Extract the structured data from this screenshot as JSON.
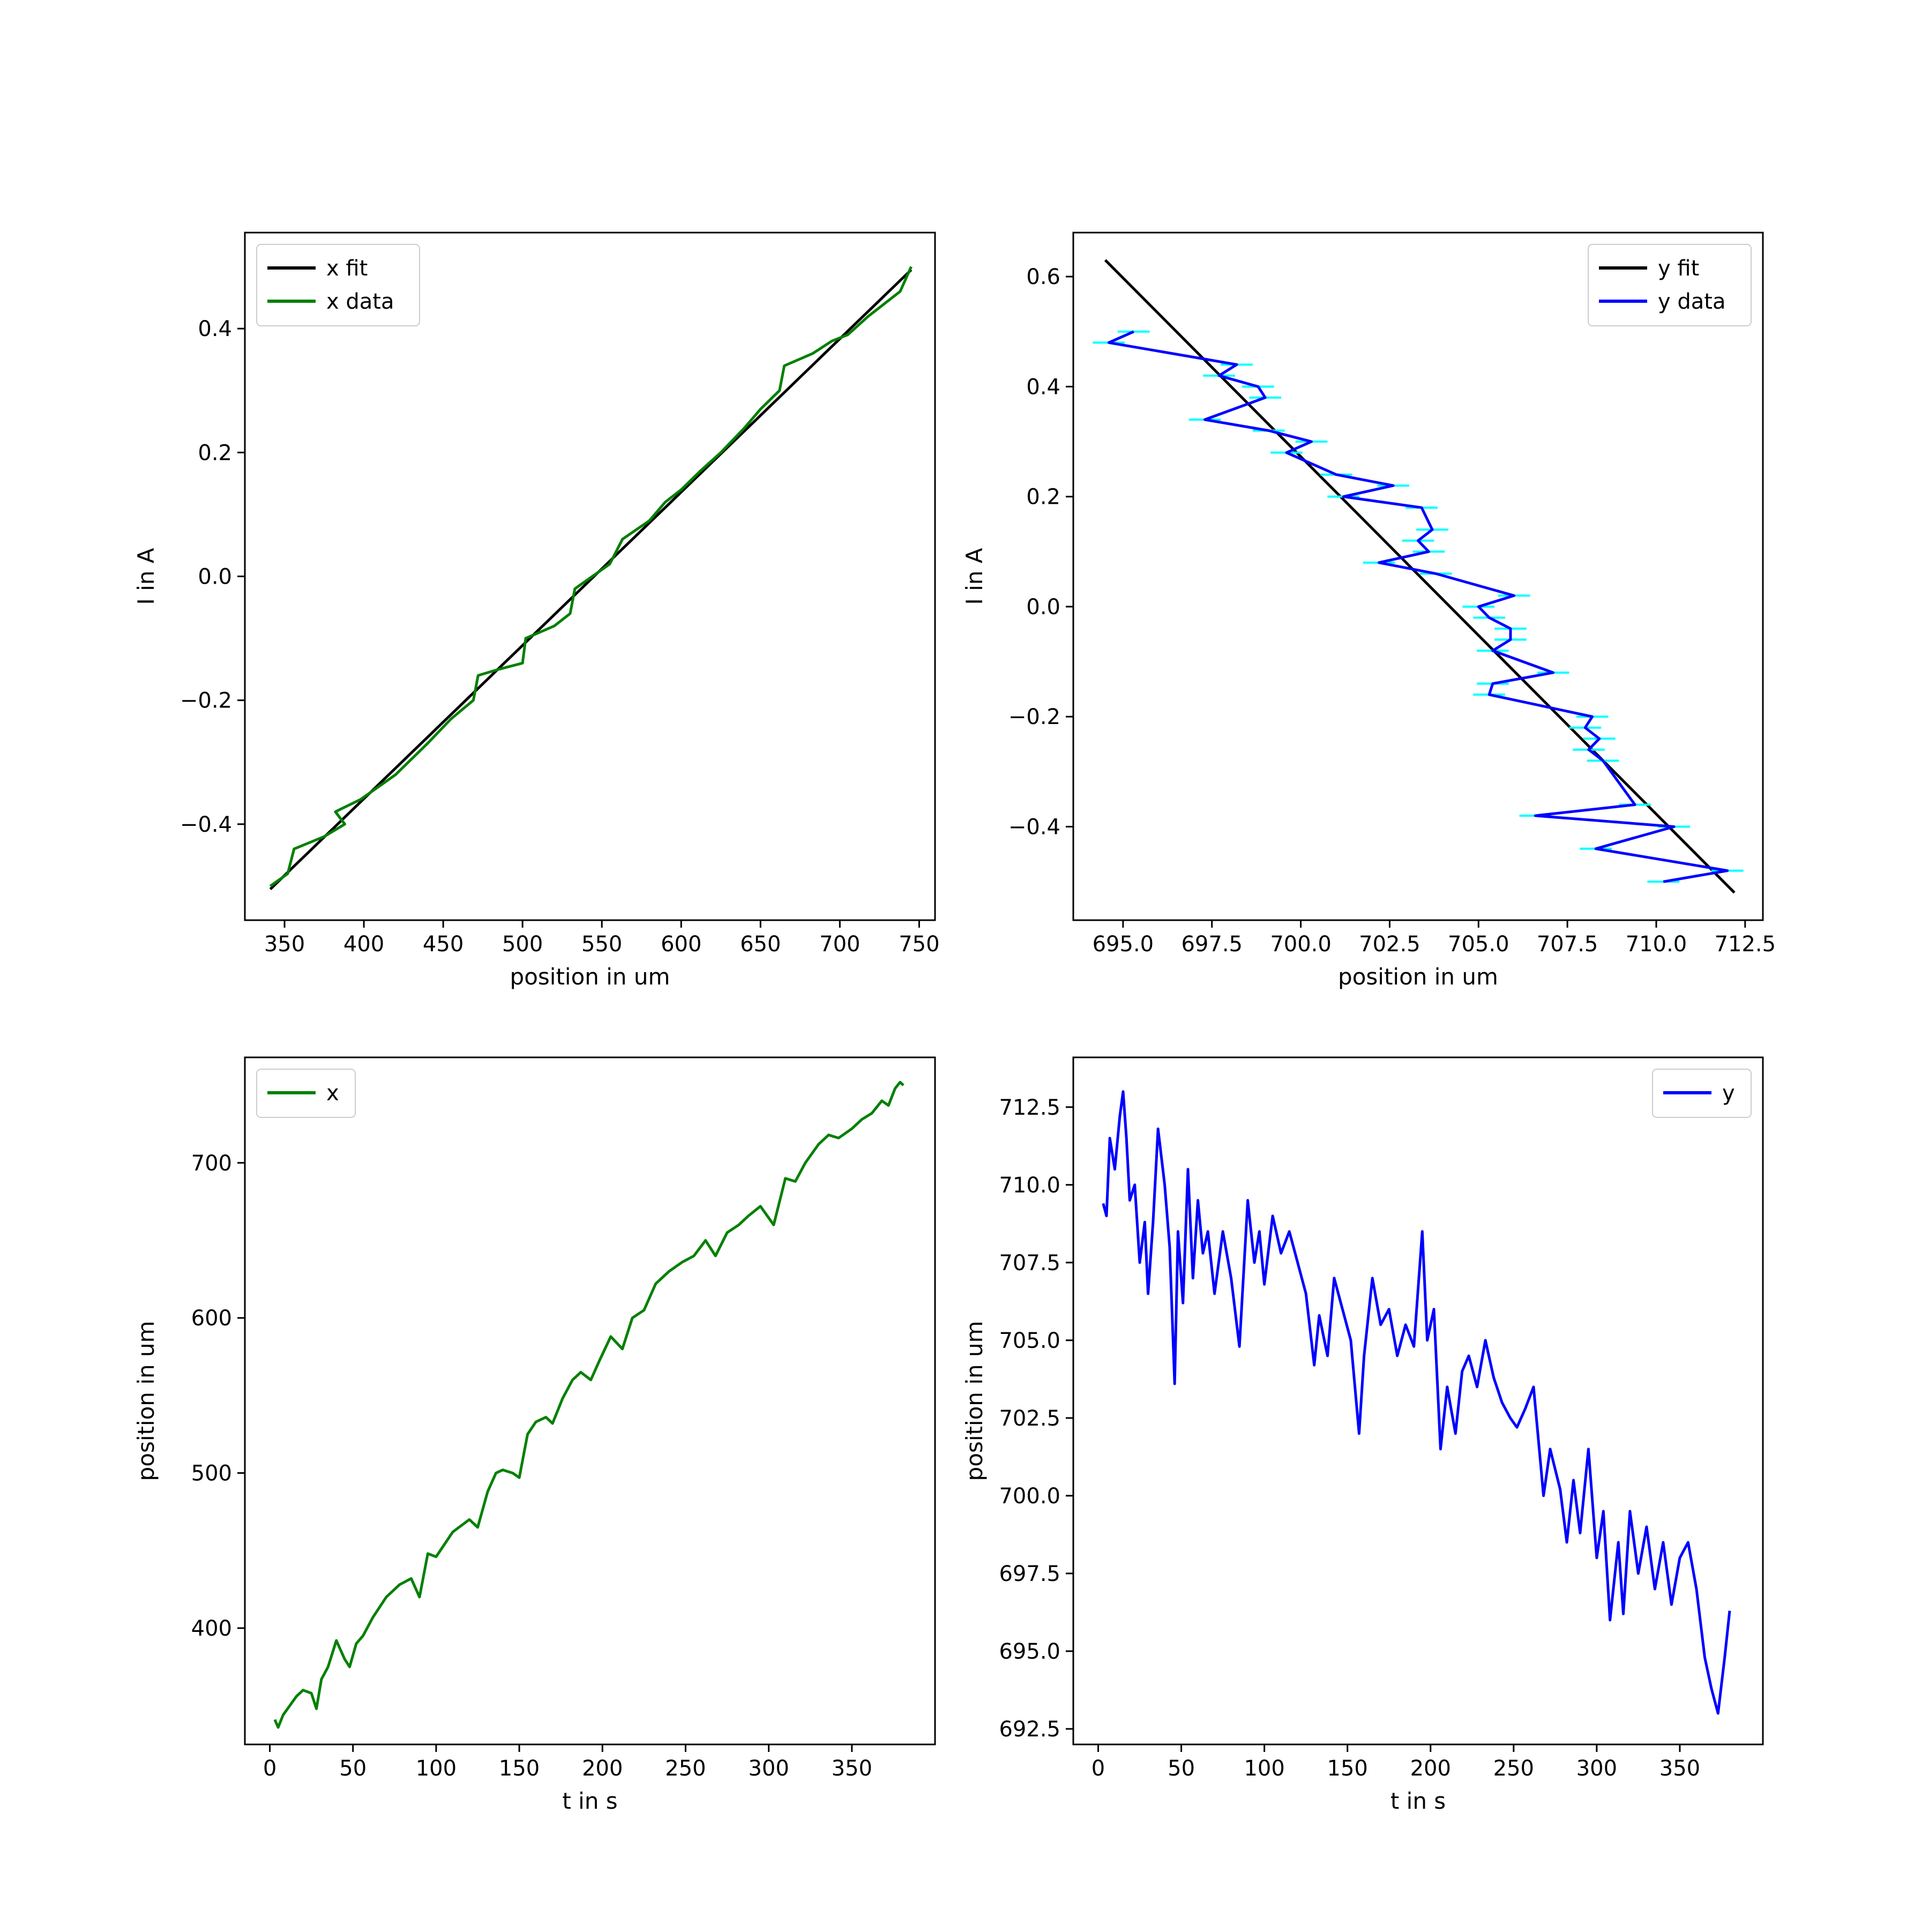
{
  "chart_data": [
    {
      "type": "line",
      "xlabel": "position in um",
      "ylabel": "I in A",
      "xlim": [
        325,
        760
      ],
      "ylim": [
        -0.555,
        0.555
      ],
      "xticks": [
        350,
        400,
        450,
        500,
        550,
        600,
        650,
        700,
        750
      ],
      "xtick_labels": [
        "350",
        "400",
        "450",
        "500",
        "550",
        "600",
        "650",
        "700",
        "750"
      ],
      "yticks": [
        -0.4,
        -0.2,
        0.0,
        0.2,
        0.4
      ],
      "ytick_labels": [
        "−0.4",
        "−0.2",
        "0.0",
        "0.2",
        "0.4"
      ],
      "legend_position": "top-left",
      "series": [
        {
          "name": "x fit",
          "color": "#000000",
          "x": [
            341,
            745
          ],
          "y": [
            -0.505,
            0.495
          ]
        },
        {
          "name": "x data",
          "color": "#008000",
          "x": [
            341,
            352,
            356,
            375,
            388,
            382,
            398,
            420,
            440,
            455,
            469,
            472,
            485,
            500,
            502,
            520,
            530,
            533,
            555,
            563,
            580,
            590,
            600,
            612,
            625,
            640,
            650,
            662,
            665,
            683,
            695,
            705,
            718,
            738,
            745
          ],
          "y": [
            -0.5,
            -0.48,
            -0.44,
            -0.42,
            -0.4,
            -0.38,
            -0.36,
            -0.32,
            -0.27,
            -0.23,
            -0.2,
            -0.16,
            -0.15,
            -0.14,
            -0.1,
            -0.08,
            -0.06,
            -0.02,
            0.02,
            0.06,
            0.09,
            0.12,
            0.14,
            0.17,
            0.2,
            0.24,
            0.27,
            0.3,
            0.34,
            0.36,
            0.38,
            0.39,
            0.42,
            0.46,
            0.5
          ]
        }
      ]
    },
    {
      "type": "line",
      "xlabel": "position in um",
      "ylabel": "I in A",
      "xlim": [
        693.6,
        713.0
      ],
      "ylim": [
        -0.57,
        0.68
      ],
      "xticks": [
        695.0,
        697.5,
        700.0,
        702.5,
        705.0,
        707.5,
        710.0,
        712.5
      ],
      "xtick_labels": [
        "695.0",
        "697.5",
        "700.0",
        "702.5",
        "705.0",
        "707.5",
        "710.0",
        "712.5"
      ],
      "yticks": [
        -0.4,
        -0.2,
        0.0,
        0.2,
        0.4,
        0.6
      ],
      "ytick_labels": [
        "−0.4",
        "−0.2",
        "0.0",
        "0.2",
        "0.4",
        "0.6"
      ],
      "legend_position": "top-right",
      "series": [
        {
          "name": "y fit",
          "color": "#000000",
          "x": [
            694.5,
            712.2
          ],
          "y": [
            0.63,
            -0.52
          ]
        },
        {
          "name": "y data",
          "color": "#0000ff",
          "errorbar_color": "#00ffff",
          "x": [
            695.3,
            694.6,
            698.2,
            697.7,
            698.8,
            699.0,
            697.3,
            699.1,
            700.3,
            699.6,
            701.0,
            702.6,
            701.2,
            703.4,
            703.7,
            703.3,
            703.6,
            702.2,
            703.8,
            706.0,
            705.0,
            705.3,
            705.9,
            705.9,
            705.4,
            707.1,
            705.4,
            705.3,
            708.2,
            708.0,
            708.4,
            708.1,
            708.5,
            709.4,
            706.6,
            710.5,
            708.3,
            712.0,
            710.2
          ],
          "y": [
            0.5,
            0.48,
            0.44,
            0.42,
            0.4,
            0.38,
            0.34,
            0.32,
            0.3,
            0.28,
            0.24,
            0.22,
            0.2,
            0.18,
            0.14,
            0.12,
            0.1,
            0.08,
            0.06,
            0.02,
            0.0,
            -0.02,
            -0.04,
            -0.06,
            -0.08,
            -0.12,
            -0.14,
            -0.16,
            -0.2,
            -0.22,
            -0.24,
            -0.26,
            -0.28,
            -0.36,
            -0.38,
            -0.4,
            -0.44,
            -0.48,
            -0.5
          ]
        }
      ]
    },
    {
      "type": "line",
      "xlabel": "t in s",
      "ylabel": "position in um",
      "xlim": [
        -15,
        400
      ],
      "ylim": [
        325,
        768
      ],
      "xticks": [
        0,
        50,
        100,
        150,
        200,
        250,
        300,
        350
      ],
      "xtick_labels": [
        "0",
        "50",
        "100",
        "150",
        "200",
        "250",
        "300",
        "350"
      ],
      "yticks": [
        400,
        500,
        600,
        700
      ],
      "ytick_labels": [
        "400",
        "500",
        "600",
        "700"
      ],
      "legend_position": "top-left",
      "series": [
        {
          "name": "x",
          "color": "#008000",
          "x": [
            3,
            5,
            8,
            12,
            16,
            20,
            25,
            28,
            31,
            35,
            40,
            45,
            48,
            52,
            56,
            62,
            70,
            78,
            85,
            90,
            95,
            100,
            110,
            120,
            125,
            131,
            136,
            140,
            146,
            150,
            155,
            160,
            166,
            170,
            176,
            182,
            187,
            193,
            198,
            205,
            212,
            218,
            225,
            232,
            240,
            248,
            255,
            262,
            268,
            275,
            282,
            288,
            295,
            303,
            310,
            316,
            322,
            330,
            336,
            342,
            350,
            356,
            362,
            368,
            372,
            376,
            379,
            381
          ],
          "y": [
            341,
            336,
            344,
            350,
            356,
            360,
            358,
            348,
            367,
            375,
            392,
            380,
            375,
            390,
            395,
            407,
            420,
            428,
            432,
            420,
            448,
            446,
            462,
            470,
            465,
            488,
            500,
            502,
            500,
            497,
            525,
            533,
            536,
            532,
            548,
            560,
            565,
            560,
            572,
            588,
            580,
            600,
            605,
            622,
            630,
            636,
            640,
            650,
            640,
            655,
            660,
            666,
            672,
            660,
            690,
            688,
            700,
            712,
            718,
            716,
            722,
            728,
            732,
            740,
            737,
            748,
            752,
            750
          ]
        }
      ]
    },
    {
      "type": "line",
      "xlabel": "t in s",
      "ylabel": "position in um",
      "xlim": [
        -15,
        400
      ],
      "ylim": [
        692.0,
        714.1
      ],
      "xticks": [
        0,
        50,
        100,
        150,
        200,
        250,
        300,
        350
      ],
      "xtick_labels": [
        "0",
        "50",
        "100",
        "150",
        "200",
        "250",
        "300",
        "350"
      ],
      "yticks": [
        692.5,
        695.0,
        697.5,
        700.0,
        702.5,
        705.0,
        707.5,
        710.0,
        712.5
      ],
      "ytick_labels": [
        "692.5",
        "695.0",
        "697.5",
        "700.0",
        "702.5",
        "705.0",
        "707.5",
        "710.0",
        "712.5"
      ],
      "legend_position": "top-right",
      "series": [
        {
          "name": "y",
          "color": "#0000ff",
          "x": [
            3,
            5,
            7,
            10,
            13,
            15,
            17,
            19,
            22,
            25,
            28,
            30,
            33,
            36,
            40,
            43,
            46,
            48,
            51,
            54,
            57,
            60,
            63,
            66,
            70,
            75,
            80,
            85,
            90,
            94,
            97,
            100,
            105,
            110,
            115,
            120,
            125,
            130,
            133,
            138,
            142,
            147,
            152,
            157,
            160,
            165,
            170,
            175,
            180,
            185,
            190,
            195,
            198,
            202,
            206,
            210,
            215,
            219,
            223,
            228,
            233,
            238,
            243,
            248,
            252,
            257,
            262,
            268,
            272,
            278,
            282,
            286,
            290,
            295,
            300,
            304,
            308,
            313,
            316,
            320,
            325,
            330,
            335,
            340,
            345,
            350,
            355,
            360,
            365,
            369,
            373,
            377,
            380
          ],
          "y": [
            709.4,
            709.0,
            711.5,
            710.5,
            712.2,
            713.0,
            711.5,
            709.5,
            710.0,
            707.5,
            708.8,
            706.5,
            708.8,
            711.8,
            710.0,
            708.0,
            703.6,
            708.5,
            706.2,
            710.5,
            707.0,
            709.5,
            707.8,
            708.5,
            706.5,
            708.5,
            707.0,
            704.8,
            709.5,
            707.5,
            708.5,
            706.8,
            709.0,
            707.8,
            708.5,
            707.5,
            706.5,
            704.2,
            705.8,
            704.5,
            707.0,
            706.0,
            705.0,
            702.0,
            704.5,
            707.0,
            705.5,
            706.0,
            704.5,
            705.5,
            704.8,
            708.5,
            705.0,
            706.0,
            701.5,
            703.5,
            702.0,
            704.0,
            704.5,
            703.5,
            705.0,
            703.8,
            703.0,
            702.5,
            702.2,
            702.8,
            703.5,
            700.0,
            701.5,
            700.2,
            698.5,
            700.5,
            698.8,
            701.5,
            698.0,
            699.5,
            696.0,
            698.5,
            696.2,
            699.5,
            697.5,
            699.0,
            697.0,
            698.5,
            696.5,
            698.0,
            698.5,
            697.0,
            694.8,
            693.8,
            693.0,
            694.8,
            696.3
          ]
        }
      ]
    }
  ]
}
